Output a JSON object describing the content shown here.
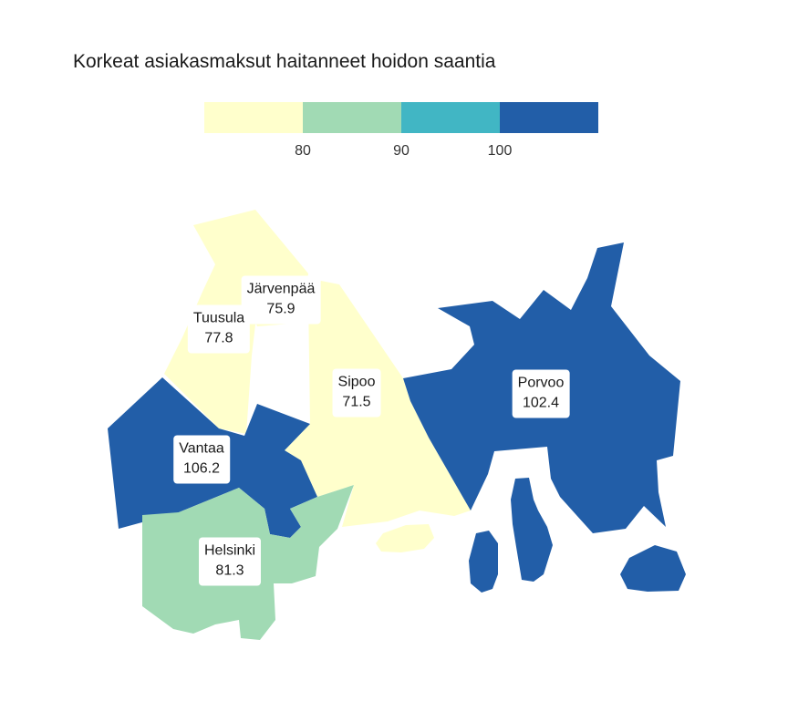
{
  "title": "Korkeat asiakasmaksut haitanneet hoidon saantia",
  "legend": {
    "colors": [
      "#ffffcc",
      "#a1dab4",
      "#41b6c4",
      "#225ea8"
    ],
    "breaks": [
      "80",
      "90",
      "100"
    ]
  },
  "regions": [
    {
      "name": "Järvenpää",
      "value": "75.9",
      "color": "#ffffcc"
    },
    {
      "name": "Tuusula",
      "value": "77.8",
      "color": "#ffffcc"
    },
    {
      "name": "Sipoo",
      "value": "71.5",
      "color": "#ffffcc"
    },
    {
      "name": "Porvoo",
      "value": "102.4",
      "color": "#225ea8"
    },
    {
      "name": "Vantaa",
      "value": "106.2",
      "color": "#225ea8"
    },
    {
      "name": "Helsinki",
      "value": "81.3",
      "color": "#a1dab4"
    }
  ]
}
